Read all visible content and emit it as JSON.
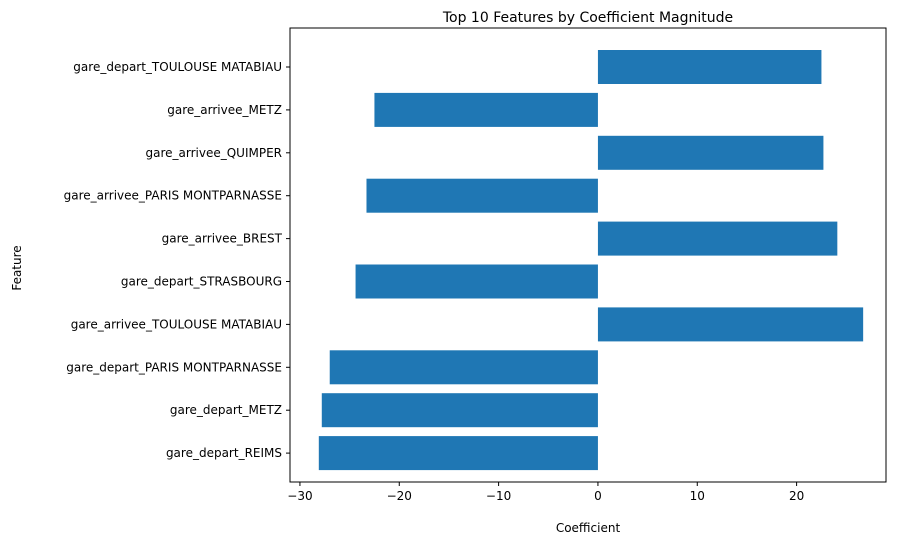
{
  "chart_data": {
    "type": "bar",
    "orientation": "horizontal",
    "title": "Top 10 Features by Coefficient Magnitude",
    "xlabel": "Coefficient",
    "ylabel": "Feature",
    "xlim": [
      -31,
      29
    ],
    "x_ticks": [
      -30,
      -20,
      -10,
      0,
      10,
      20
    ],
    "x_tick_labels": [
      "−30",
      "−20",
      "−10",
      "0",
      "10",
      "20"
    ],
    "grid": false,
    "bar_color": "#1f77b4",
    "categories": [
      "gare_depart_TOULOUSE MATABIAU",
      "gare_arrivee_METZ",
      "gare_arrivee_QUIMPER",
      "gare_arrivee_PARIS MONTPARNASSE",
      "gare_arrivee_BREST",
      "gare_depart_STRASBOURG",
      "gare_arrivee_TOULOUSE MATABIAU",
      "gare_depart_PARIS MONTPARNASSE",
      "gare_depart_METZ",
      "gare_depart_REIMS"
    ],
    "values": [
      22.5,
      -22.5,
      22.7,
      -23.3,
      24.1,
      -24.4,
      26.7,
      -27.0,
      -27.8,
      -28.1
    ]
  }
}
